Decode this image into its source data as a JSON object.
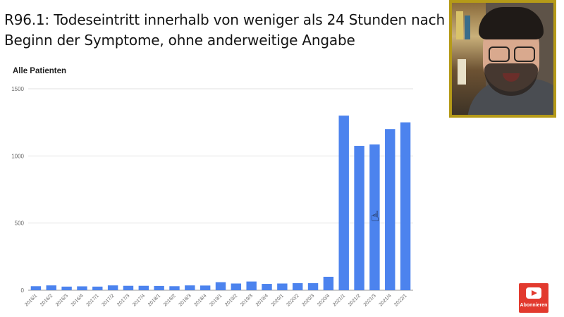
{
  "slide": {
    "title_line1": "R96.1: Todeseintritt innerhalb von weniger als 24 Stunden nach",
    "title_line2": "Beginn der Symptome, ohne anderweitige Angabe"
  },
  "subscribe": {
    "label": "Abonnieren",
    "icon": "youtube-play-icon",
    "color": "#e23a2e"
  },
  "chart_data": {
    "type": "bar",
    "title": "Alle Patienten",
    "xlabel": "",
    "ylabel": "",
    "ylim": [
      0,
      1500
    ],
    "yticks": [
      0,
      500,
      1000,
      1500
    ],
    "grid": true,
    "bar_color": "#4c83ee",
    "categories": [
      "2016/1",
      "2016/2",
      "2016/3",
      "2016/4",
      "2017/1",
      "2017/2",
      "2017/3",
      "2017/4",
      "2018/1",
      "2018/2",
      "2018/3",
      "2018/4",
      "2019/1",
      "2019/2",
      "2019/3",
      "2019/4",
      "2020/1",
      "2020/2",
      "2020/3",
      "2020/4",
      "2021/1",
      "2021/2",
      "2021/3",
      "2021/4",
      "2022/1"
    ],
    "values": [
      30,
      36,
      27,
      29,
      27,
      36,
      33,
      33,
      32,
      30,
      36,
      35,
      60,
      50,
      65,
      47,
      50,
      53,
      53,
      100,
      1300,
      1075,
      1085,
      1200,
      1250
    ]
  }
}
